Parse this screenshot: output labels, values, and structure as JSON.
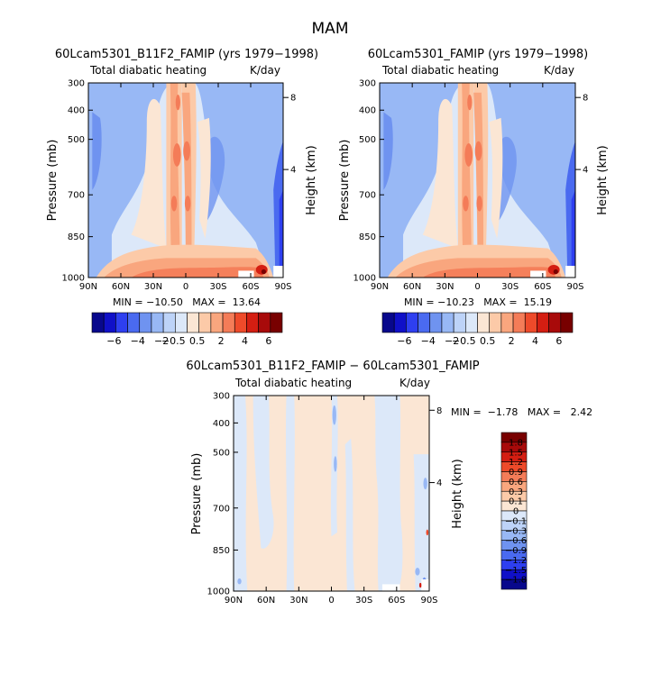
{
  "page": {
    "title": "MAM"
  },
  "chart_data": [
    {
      "type": "heatmap",
      "title": "60Lcam5301_B11F2_FAMIP (yrs 1979−1998)",
      "left_label": "Total diabatic heating",
      "right_label": "K/day",
      "xlabel": "",
      "ylabel": "Pressure (mb)",
      "y2label": "Height (km)",
      "x_ticks": [
        "90N",
        "60N",
        "30N",
        "0",
        "30S",
        "60S",
        "90S"
      ],
      "y_ticks": [
        "300",
        "400",
        "500",
        "700",
        "850",
        "1000"
      ],
      "y2_ticks": [
        "8",
        "4"
      ],
      "stats_text": "MIN = −10.50   MAX =  13.64",
      "min": -10.5,
      "max": 13.64
    },
    {
      "type": "heatmap",
      "title": "60Lcam5301_FAMIP (yrs 1979−1998)",
      "left_label": "Total diabatic heating",
      "right_label": "K/day",
      "xlabel": "",
      "ylabel": "Pressure (mb)",
      "y2label": "Height (km)",
      "x_ticks": [
        "90N",
        "60N",
        "30N",
        "0",
        "30S",
        "60S",
        "90S"
      ],
      "y_ticks": [
        "300",
        "400",
        "500",
        "700",
        "850",
        "1000"
      ],
      "y2_ticks": [
        "8",
        "4"
      ],
      "stats_text": "MIN = −10.23   MAX =  15.19",
      "min": -10.23,
      "max": 15.19
    },
    {
      "type": "heatmap",
      "title": "60Lcam5301_B11F2_FAMIP − 60Lcam5301_FAMIP",
      "left_label": "Total diabatic heating",
      "right_label": "K/day",
      "xlabel": "",
      "ylabel": "Pressure (mb)",
      "y2label": "Height (km)",
      "x_ticks": [
        "90N",
        "60N",
        "30N",
        "0",
        "30S",
        "60S",
        "90S"
      ],
      "y_ticks": [
        "300",
        "400",
        "500",
        "700",
        "850",
        "1000"
      ],
      "y2_ticks": [
        "8",
        "4"
      ],
      "stats_text": "MIN =  −1.78   MAX =   2.42",
      "min": -1.78,
      "max": 2.42
    }
  ],
  "colorbar_top": {
    "labels": [
      "−6",
      "−4",
      "−2",
      "−0.5",
      "0.5",
      "2",
      "4",
      "6"
    ],
    "colors": [
      "#08088c",
      "#1010c8",
      "#2e3ff0",
      "#4a6af0",
      "#6f93f0",
      "#98b8f5",
      "#bdd3f8",
      "#dce8f9",
      "#fbe6d4",
      "#fccaa8",
      "#f9a67e",
      "#f47c58",
      "#ee4a2a",
      "#d41e12",
      "#a80a0a",
      "#780000"
    ]
  },
  "colorbar_diff": {
    "labels": [
      "1.8",
      "1.5",
      "1.2",
      "0.9",
      "0.6",
      "0.3",
      "0.1",
      "0",
      "−0.1",
      "−0.3",
      "−0.6",
      "−0.9",
      "−1.2",
      "−1.5",
      "−1.8"
    ],
    "colors": [
      "#780000",
      "#a80a0a",
      "#d41e12",
      "#ee4a2a",
      "#f47c58",
      "#f9a67e",
      "#fccaa8",
      "#fbe6d4",
      "#dce8f9",
      "#bdd3f8",
      "#98b8f5",
      "#6f93f0",
      "#4a6af0",
      "#2e3ff0",
      "#1010c8",
      "#08088c"
    ]
  }
}
